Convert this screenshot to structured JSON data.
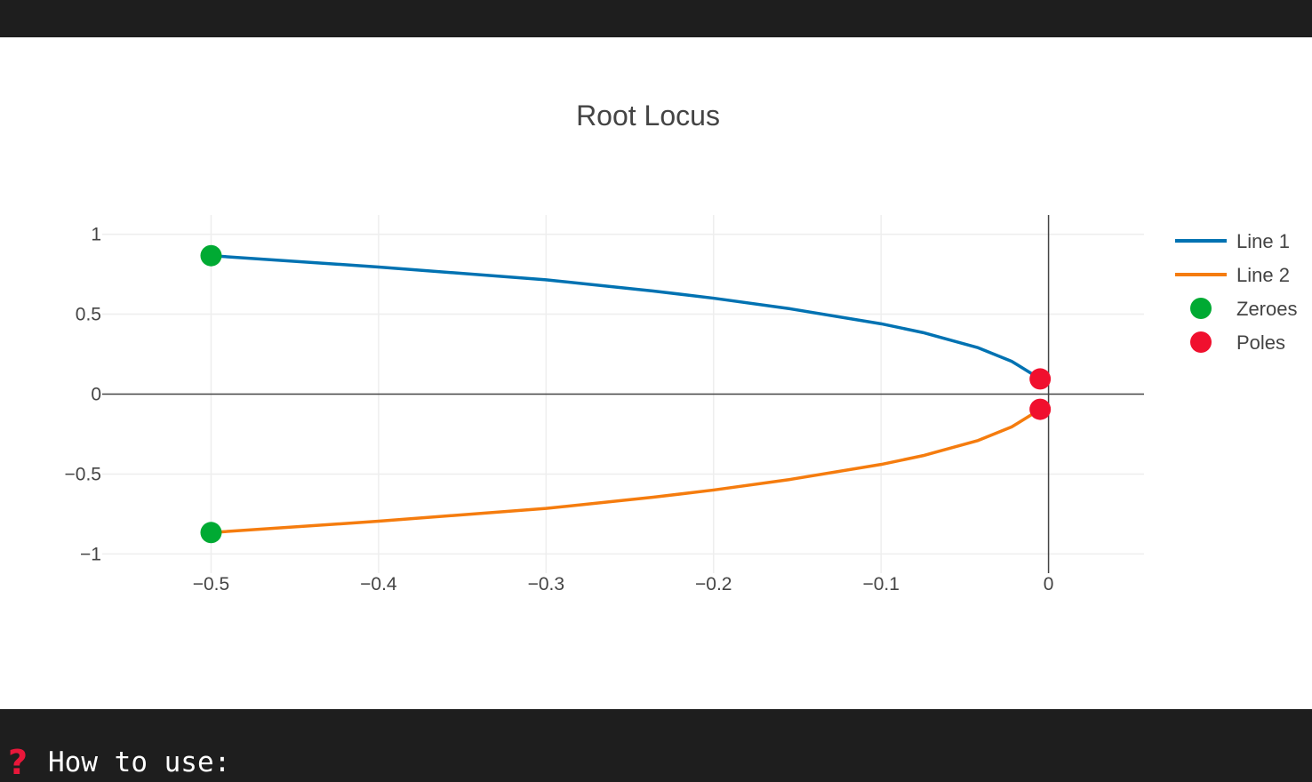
{
  "help": {
    "icon": "question-mark-icon",
    "label": "How to use:"
  },
  "colors": {
    "line1": "#0072b2",
    "line2": "#f57c0e",
    "zeroes": "#00aa33",
    "poles": "#f0102e",
    "grid": "#eeeeee",
    "axis": "#444444"
  },
  "chart_data": {
    "type": "line",
    "title": "Root Locus",
    "xlabel": "",
    "ylabel": "",
    "xlim": [
      -0.565,
      0.057
    ],
    "ylim": [
      -1.12,
      1.12
    ],
    "xticks": [
      -0.5,
      -0.4,
      -0.3,
      -0.2,
      -0.1,
      0
    ],
    "xtick_labels": [
      "−0.5",
      "−0.4",
      "−0.3",
      "−0.2",
      "−0.1",
      "0"
    ],
    "yticks": [
      1,
      0.5,
      0,
      -0.5,
      -1
    ],
    "ytick_labels": [
      "1",
      "0.5",
      "0",
      "−0.5",
      "−1"
    ],
    "grid": true,
    "legend": "right",
    "series": [
      {
        "name": "Line 1",
        "kind": "line",
        "color": "#0072b2",
        "x": [
          -0.5,
          -0.4,
          -0.3,
          -0.236,
          -0.2,
          -0.155,
          -0.1,
          -0.075,
          -0.042,
          -0.022,
          -0.005
        ],
        "y": [
          0.866,
          0.795,
          0.715,
          0.645,
          0.6,
          0.535,
          0.44,
          0.385,
          0.29,
          0.205,
          0.095
        ]
      },
      {
        "name": "Line 2",
        "kind": "line",
        "color": "#f57c0e",
        "x": [
          -0.5,
          -0.4,
          -0.3,
          -0.236,
          -0.2,
          -0.155,
          -0.1,
          -0.075,
          -0.042,
          -0.022,
          -0.005
        ],
        "y": [
          -0.866,
          -0.795,
          -0.715,
          -0.645,
          -0.6,
          -0.535,
          -0.44,
          -0.385,
          -0.29,
          -0.205,
          -0.095
        ]
      },
      {
        "name": "Zeroes",
        "kind": "marker",
        "color": "#00aa33",
        "x": [
          -0.5,
          -0.5
        ],
        "y": [
          0.866,
          -0.866
        ]
      },
      {
        "name": "Poles",
        "kind": "marker",
        "color": "#f0102e",
        "x": [
          -0.005,
          -0.005
        ],
        "y": [
          0.095,
          -0.095
        ]
      }
    ]
  }
}
